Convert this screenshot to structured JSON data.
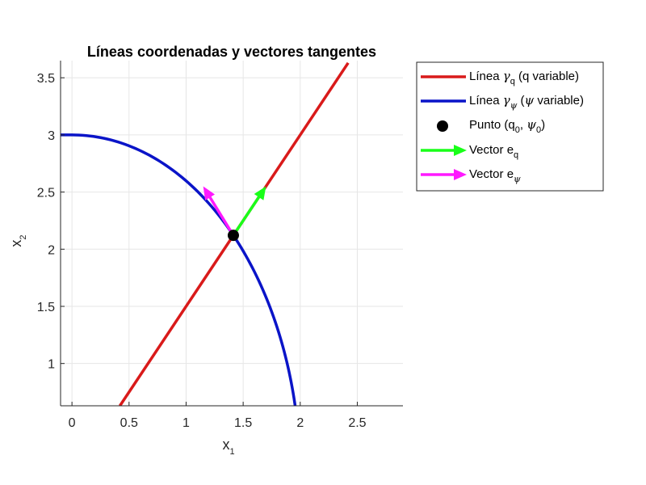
{
  "chart_data": {
    "type": "line",
    "title": "Líneas coordenadas y vectores tangentes",
    "xlabel": {
      "base": "x",
      "sub": "1"
    },
    "ylabel": {
      "base": "x",
      "sub": "2"
    },
    "xlim": [
      -0.1,
      2.9
    ],
    "ylim": [
      0.63,
      3.65
    ],
    "xticks": [
      0,
      0.5,
      1,
      1.5,
      2,
      2.5
    ],
    "xtick_labels": [
      "0",
      "0.5",
      "1",
      "1.5",
      "2",
      "2.5"
    ],
    "yticks": [
      1,
      1.5,
      2,
      2.5,
      3,
      3.5
    ],
    "ytick_labels": [
      "1",
      "1.5",
      "2",
      "2.5",
      "3",
      "3.5"
    ],
    "grid": true,
    "legend_position": "outside-right-top",
    "series": [
      {
        "kind": "line",
        "color": "#d91a1a",
        "x": [
          0.42,
          2.42
        ],
        "y": [
          0.63,
          3.63
        ],
        "legend": {
          "pre": "Línea ",
          "sym": "γ",
          "sub": "q",
          "post": " (q variable)"
        }
      },
      {
        "kind": "curve",
        "color": "#0a14c8",
        "x": [
          -0.1,
          0.0,
          0.3,
          0.6,
          0.9,
          1.2,
          1.414,
          1.6,
          1.8,
          1.9,
          1.96
        ],
        "y": [
          3.0,
          3.0,
          2.985,
          2.938,
          2.86,
          2.75,
          2.121,
          1.992,
          1.732,
          1.542,
          0.63
        ],
        "ellipse": {
          "a": 2.0,
          "b": 3.0
        },
        "legend": {
          "pre": "Línea ",
          "sym": "γ",
          "sub": "ψ",
          "post": " (",
          "sym2": "ψ",
          "post2": " variable)"
        }
      },
      {
        "kind": "point",
        "color": "#000000",
        "x": [
          1.414
        ],
        "y": [
          2.121
        ],
        "legend": {
          "text": "Punto (q",
          "sub1": "0",
          "mid": ", ",
          "sym": "ψ",
          "sub2": "0",
          "post": ")"
        }
      },
      {
        "kind": "arrow",
        "color": "#19ff19",
        "x": [
          1.414,
          1.7
        ],
        "y": [
          2.121,
          2.55
        ],
        "legend": {
          "text": "Vector e",
          "sub": "q"
        }
      },
      {
        "kind": "arrow",
        "color": "#ff19ff",
        "x": [
          1.414,
          1.15
        ],
        "y": [
          2.121,
          2.55
        ],
        "legend": {
          "text": "Vector e",
          "sub": "ψ"
        }
      }
    ]
  }
}
